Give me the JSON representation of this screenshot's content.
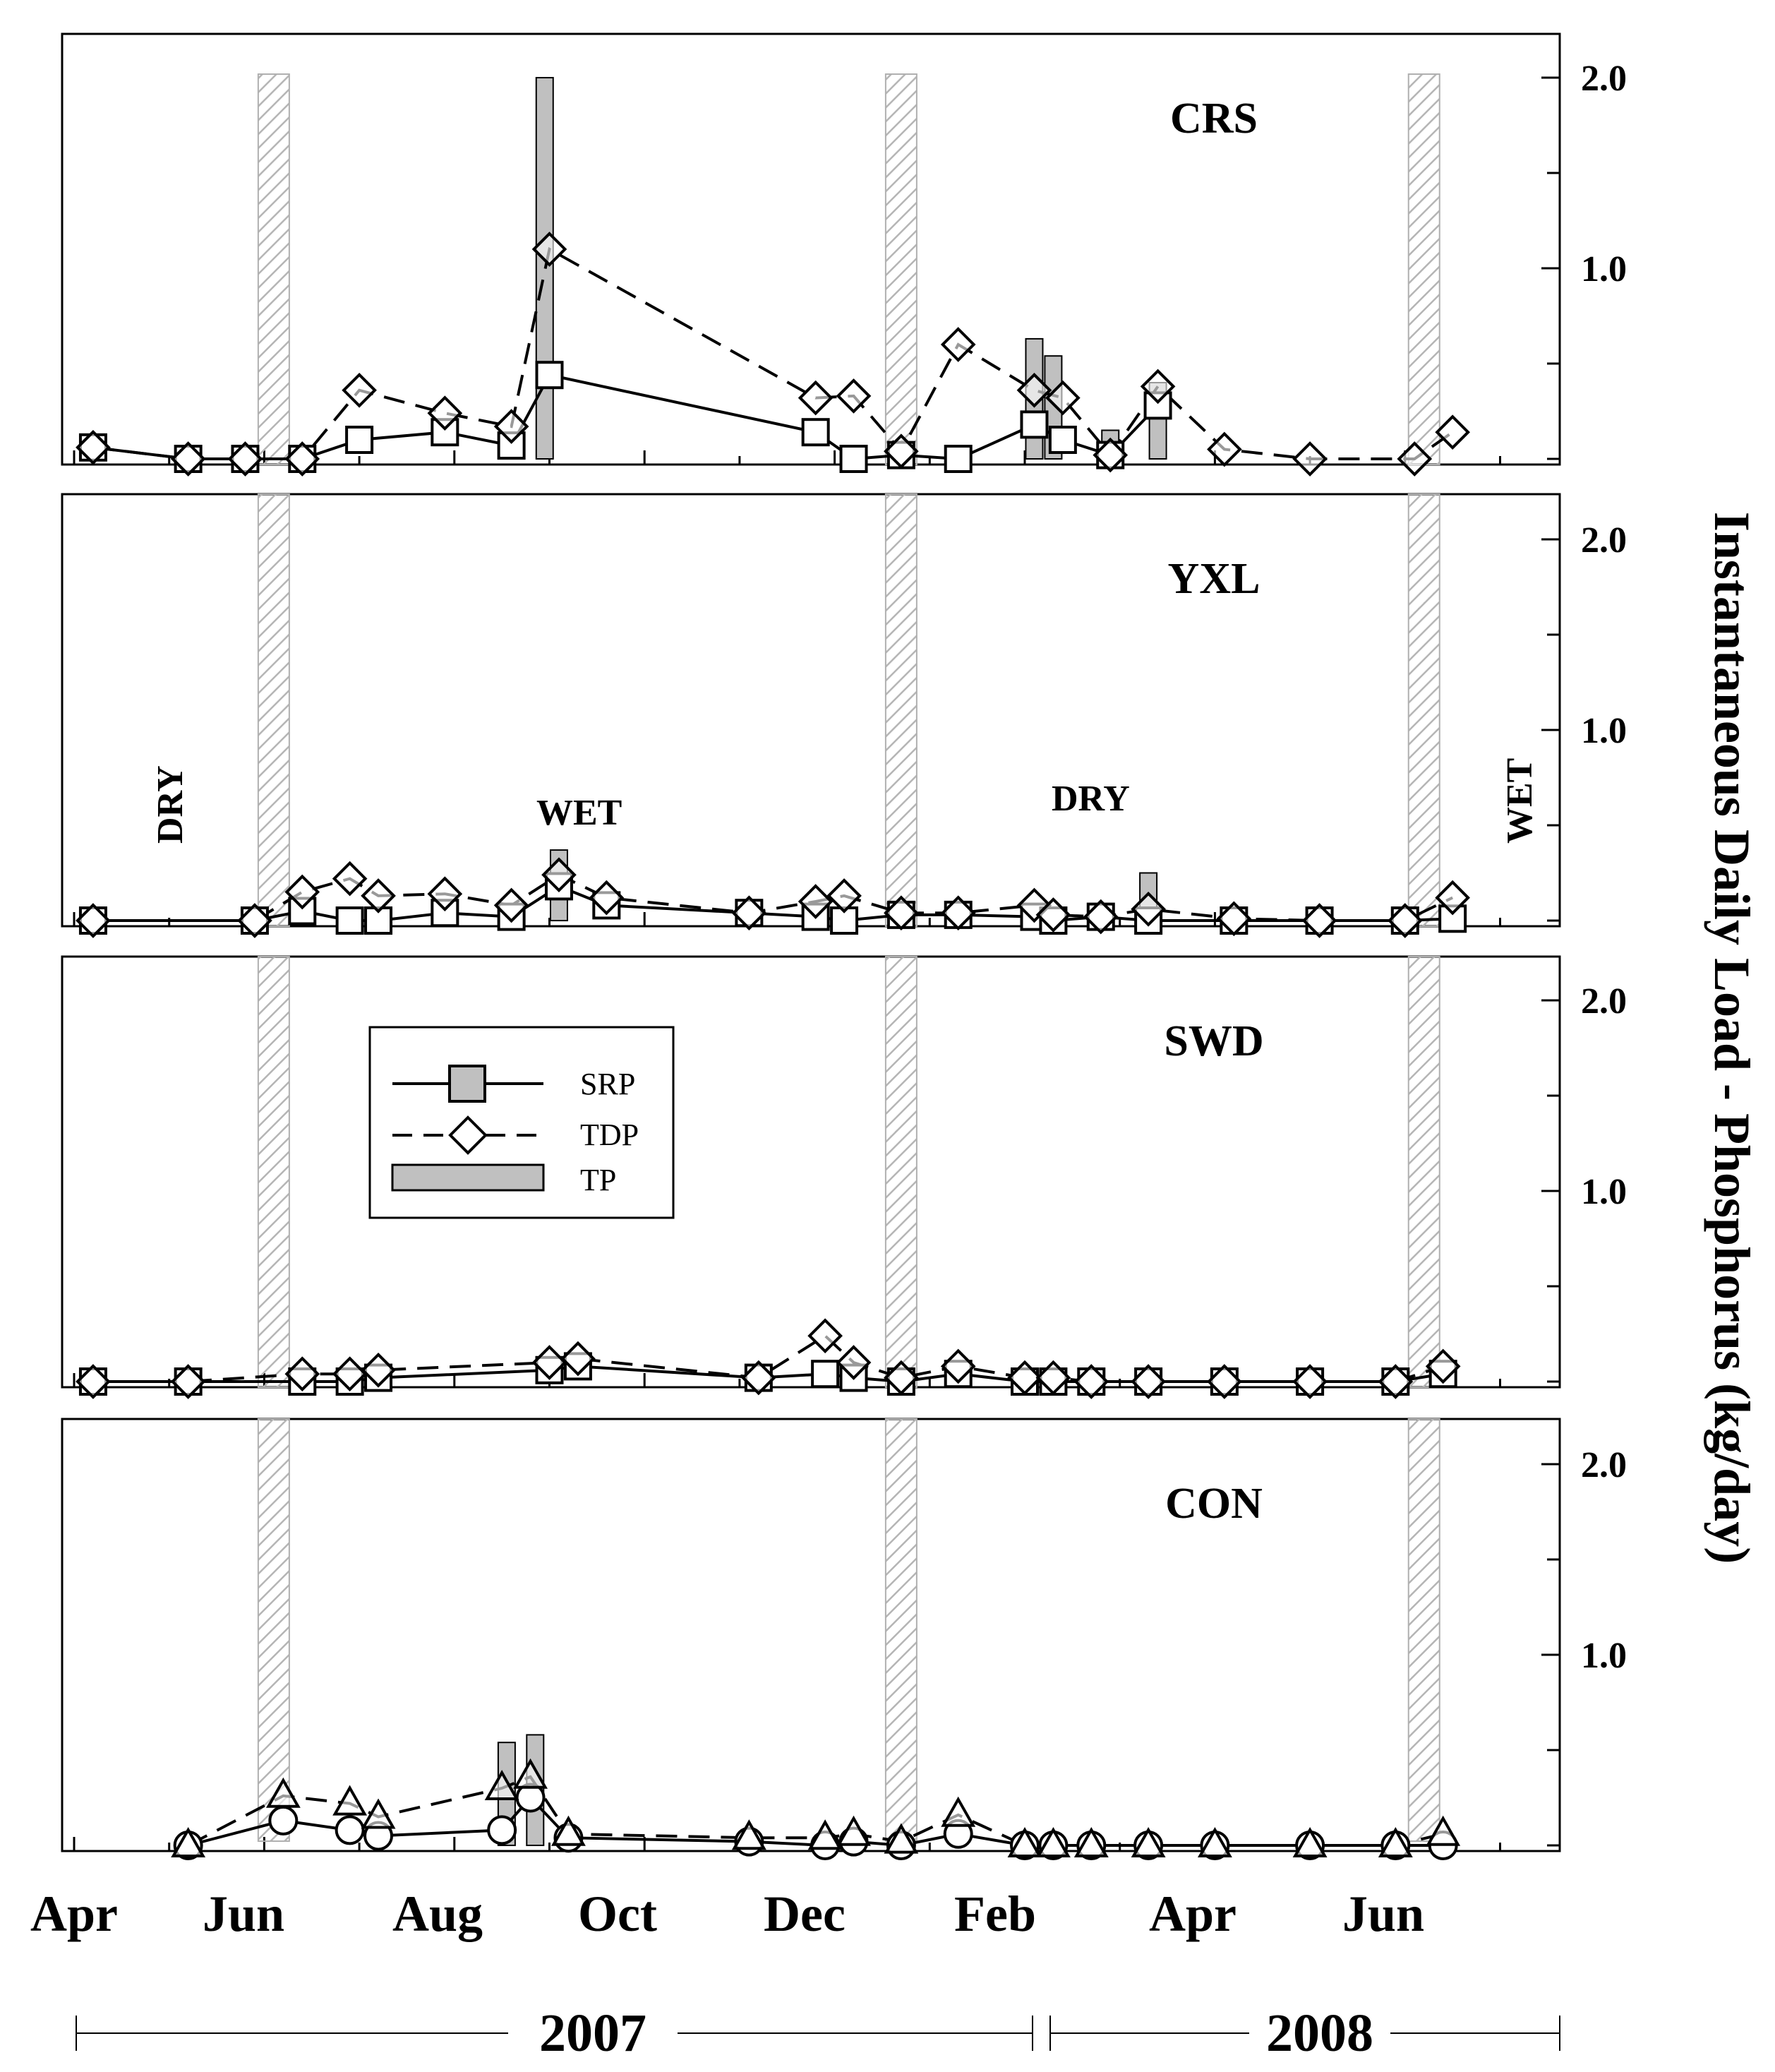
{
  "chart_data": {
    "type": "line",
    "ylabel": "Instantaneous Daily Load - Phosphorus (kg/day)",
    "xticks": [
      "Apr",
      "Jun",
      "Aug",
      "Oct",
      "Dec",
      "Feb",
      "Apr",
      "Jun"
    ],
    "years": [
      "2007",
      "2008"
    ],
    "yticks": [
      "2.0",
      "1.0"
    ],
    "ylim": [
      0,
      2.2
    ],
    "xlim_month_index": [
      0,
      15.6
    ],
    "legend": {
      "placement": "upper-left of SWD panel",
      "entries": [
        "SRP",
        "TDP",
        "TP"
      ]
    },
    "season_labels": [
      "DRY",
      "WET",
      "DRY",
      "WET"
    ],
    "hatched_boundaries_month_index": [
      2.1,
      8.7,
      14.2
    ],
    "panels": [
      {
        "title": "CRS",
        "series": [
          {
            "name": "SRP",
            "marker": "square",
            "style": "solid",
            "x": [
              0.2,
              1.2,
              1.8,
              2.4,
              3.0,
              3.9,
              4.6,
              5.0,
              7.8,
              8.2,
              8.7,
              9.3,
              10.1,
              10.4,
              10.9,
              11.4
            ],
            "y": [
              0.06,
              0.0,
              0.0,
              0.0,
              0.1,
              0.14,
              0.07,
              0.44,
              0.14,
              0.0,
              0.02,
              0.0,
              0.18,
              0.1,
              0.02,
              0.28
            ]
          },
          {
            "name": "TDP",
            "marker": "diamond",
            "style": "dashed",
            "x": [
              0.2,
              1.2,
              1.8,
              2.4,
              3.0,
              3.9,
              4.6,
              5.0,
              7.8,
              8.2,
              8.7,
              9.3,
              10.1,
              10.4,
              10.9,
              11.4,
              12.1,
              13.0,
              14.1,
              14.5
            ],
            "y": [
              0.06,
              0.0,
              0.0,
              0.0,
              0.36,
              0.24,
              0.17,
              1.1,
              0.32,
              0.33,
              0.04,
              0.6,
              0.36,
              0.32,
              0.02,
              0.38,
              0.05,
              0.0,
              0.0,
              0.14
            ]
          },
          {
            "name": "TP",
            "type": "bar",
            "x": [
              4.95,
              10.1,
              10.3,
              10.9,
              11.4
            ],
            "y": [
              2.0,
              0.63,
              0.54,
              0.15,
              0.4
            ]
          }
        ]
      },
      {
        "title": "YXL",
        "series": [
          {
            "name": "SRP",
            "marker": "square",
            "style": "solid",
            "x": [
              0.2,
              1.9,
              2.4,
              2.9,
              3.2,
              3.9,
              4.6,
              5.1,
              5.6,
              7.1,
              7.8,
              8.1,
              8.7,
              9.3,
              10.1,
              10.3,
              10.8,
              11.3,
              12.2,
              13.1,
              14.0,
              14.5
            ],
            "y": [
              0.0,
              0.0,
              0.05,
              0.0,
              0.0,
              0.04,
              0.02,
              0.18,
              0.08,
              0.04,
              0.02,
              0.0,
              0.03,
              0.03,
              0.02,
              0.0,
              0.02,
              0.0,
              0.0,
              0.0,
              0.0,
              0.01
            ]
          },
          {
            "name": "TDP",
            "marker": "diamond",
            "style": "dashed",
            "x": [
              0.2,
              1.9,
              2.4,
              2.9,
              3.2,
              3.9,
              4.6,
              5.1,
              5.6,
              7.1,
              7.8,
              8.1,
              8.7,
              9.3,
              10.1,
              10.3,
              10.8,
              11.3,
              12.2,
              13.1,
              14.0,
              14.5
            ],
            "y": [
              0.0,
              0.0,
              0.15,
              0.22,
              0.13,
              0.14,
              0.08,
              0.24,
              0.12,
              0.04,
              0.1,
              0.13,
              0.04,
              0.04,
              0.08,
              0.03,
              0.02,
              0.06,
              0.01,
              0.0,
              0.0,
              0.12
            ]
          },
          {
            "name": "TP",
            "type": "bar",
            "x": [
              5.1,
              11.3
            ],
            "y": [
              0.37,
              0.25
            ]
          }
        ]
      },
      {
        "title": "SWD",
        "series": [
          {
            "name": "SRP",
            "marker": "square",
            "style": "solid",
            "x": [
              0.2,
              1.2,
              2.4,
              2.9,
              3.2,
              5.0,
              5.3,
              7.2,
              7.9,
              8.2,
              8.7,
              9.3,
              10.0,
              10.3,
              10.7,
              11.3,
              12.1,
              13.0,
              13.9,
              14.4
            ],
            "y": [
              0.0,
              0.0,
              0.0,
              0.0,
              0.02,
              0.06,
              0.08,
              0.02,
              0.04,
              0.02,
              0.0,
              0.04,
              0.0,
              0.0,
              0.0,
              0.0,
              0.0,
              0.0,
              0.0,
              0.04
            ]
          },
          {
            "name": "TDP",
            "marker": "diamond",
            "style": "dashed",
            "x": [
              0.2,
              1.2,
              2.4,
              2.9,
              3.2,
              5.0,
              5.3,
              7.2,
              7.9,
              8.2,
              8.7,
              9.3,
              10.0,
              10.3,
              10.7,
              11.3,
              12.1,
              13.0,
              13.9,
              14.4
            ],
            "y": [
              0.0,
              0.0,
              0.04,
              0.04,
              0.06,
              0.1,
              0.12,
              0.02,
              0.24,
              0.1,
              0.02,
              0.08,
              0.02,
              0.02,
              0.0,
              0.0,
              0.0,
              0.0,
              0.0,
              0.08
            ]
          }
        ]
      },
      {
        "title": "CON",
        "series": [
          {
            "name": "SRP",
            "marker": "circle",
            "style": "solid",
            "x": [
              1.2,
              2.2,
              2.9,
              3.2,
              4.5,
              4.8,
              5.2,
              7.1,
              7.9,
              8.2,
              8.7,
              9.3,
              10.0,
              10.3,
              10.7,
              11.3,
              12.0,
              13.0,
              13.9,
              14.4
            ],
            "y": [
              0.0,
              0.13,
              0.08,
              0.05,
              0.08,
              0.25,
              0.04,
              0.02,
              0.0,
              0.02,
              0.0,
              0.06,
              0.0,
              0.0,
              0.0,
              0.0,
              0.0,
              0.0,
              0.0,
              0.0
            ]
          },
          {
            "name": "TDP",
            "marker": "triangle",
            "style": "dashed",
            "x": [
              1.2,
              2.2,
              2.9,
              3.2,
              4.5,
              4.8,
              5.2,
              7.1,
              7.9,
              8.2,
              8.7,
              9.3,
              10.0,
              10.3,
              10.7,
              11.3,
              12.0,
              13.0,
              13.9,
              14.4
            ],
            "y": [
              0.0,
              0.26,
              0.22,
              0.15,
              0.3,
              0.36,
              0.06,
              0.04,
              0.04,
              0.06,
              0.02,
              0.16,
              0.0,
              0.0,
              0.0,
              0.0,
              0.0,
              0.0,
              0.0,
              0.06
            ]
          },
          {
            "name": "TP",
            "type": "bar",
            "x": [
              4.55,
              4.85
            ],
            "y": [
              0.54,
              0.58
            ]
          }
        ]
      }
    ]
  }
}
